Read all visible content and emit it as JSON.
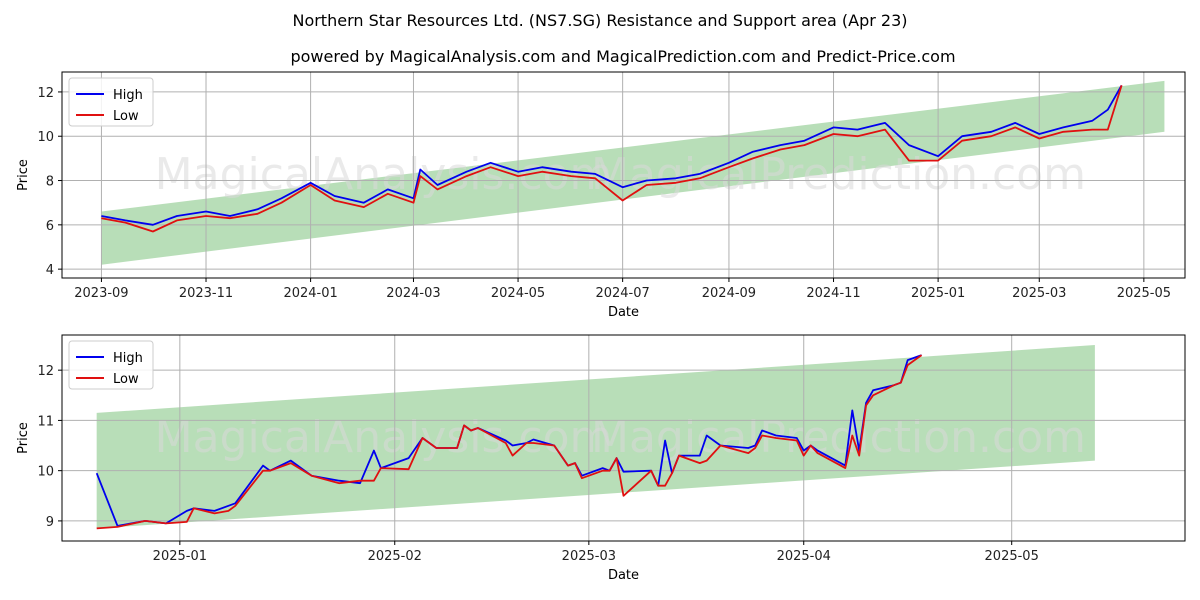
{
  "title": "Northern Star Resources Ltd. (NS7.SG) Resistance and Support area (Apr 23)",
  "subtitle": "powered by MagicalAnalysis.com and MagicalPrediction.com and Predict-Price.com",
  "watermark": "MagicalAnalysis.com",
  "watermark2": "MagicalPrediction.com",
  "colors": {
    "high": "#0000ee",
    "low": "#e01010",
    "band": "#8cc98c",
    "grid": "#b0b0b0"
  },
  "chart_data": [
    {
      "type": "line",
      "xlabel": "Date",
      "ylabel": "Price",
      "xlim": [
        "2023-08-09",
        "2025-05-25"
      ],
      "ylim": [
        3.6,
        12.9
      ],
      "grid": true,
      "legend": "top-left",
      "x_ticks": [
        "2023-09-01",
        "2023-11-01",
        "2024-01-01",
        "2024-03-01",
        "2024-05-01",
        "2024-07-01",
        "2024-09-01",
        "2024-11-01",
        "2025-01-01",
        "2025-03-01",
        "2025-05-01"
      ],
      "x_tick_labels": [
        "2023-09",
        "2023-11",
        "2024-01",
        "2024-03",
        "2024-05",
        "2024-07",
        "2024-09",
        "2024-11",
        "2025-01",
        "2025-03",
        "2025-05"
      ],
      "y_ticks": [
        4,
        6,
        8,
        10,
        12
      ],
      "y_tick_labels": [
        "4",
        "6",
        "8",
        "10",
        "12"
      ],
      "band": {
        "x": [
          "2023-09-01",
          "2025-05-13"
        ],
        "upper": [
          6.6,
          12.5
        ],
        "lower": [
          4.2,
          10.2
        ]
      },
      "series": [
        {
          "name": "High",
          "x": [
            "2023-09-01",
            "2023-09-15",
            "2023-10-01",
            "2023-10-15",
            "2023-11-01",
            "2023-11-15",
            "2023-12-01",
            "2023-12-15",
            "2024-01-01",
            "2024-01-15",
            "2024-02-01",
            "2024-02-15",
            "2024-03-01",
            "2024-03-05",
            "2024-03-15",
            "2024-04-01",
            "2024-04-15",
            "2024-05-01",
            "2024-05-15",
            "2024-06-01",
            "2024-06-15",
            "2024-07-01",
            "2024-07-15",
            "2024-08-01",
            "2024-08-15",
            "2024-09-01",
            "2024-09-15",
            "2024-10-01",
            "2024-10-15",
            "2024-11-01",
            "2024-11-15",
            "2024-12-01",
            "2024-12-15",
            "2025-01-01",
            "2025-01-15",
            "2025-02-01",
            "2025-02-15",
            "2025-03-01",
            "2025-03-15",
            "2025-04-01",
            "2025-04-10",
            "2025-04-18"
          ],
          "values": [
            6.4,
            6.2,
            6.0,
            6.4,
            6.6,
            6.4,
            6.7,
            7.2,
            7.9,
            7.3,
            7.0,
            7.6,
            7.2,
            8.5,
            7.8,
            8.4,
            8.8,
            8.4,
            8.6,
            8.4,
            8.3,
            7.7,
            8.0,
            8.1,
            8.3,
            8.8,
            9.3,
            9.6,
            9.8,
            10.4,
            10.3,
            10.6,
            9.6,
            9.1,
            10.0,
            10.2,
            10.6,
            10.1,
            10.4,
            10.7,
            11.2,
            12.3
          ]
        },
        {
          "name": "Low",
          "x": [
            "2023-09-01",
            "2023-09-15",
            "2023-10-01",
            "2023-10-15",
            "2023-11-01",
            "2023-11-15",
            "2023-12-01",
            "2023-12-15",
            "2024-01-01",
            "2024-01-15",
            "2024-02-01",
            "2024-02-15",
            "2024-03-01",
            "2024-03-05",
            "2024-03-15",
            "2024-04-01",
            "2024-04-15",
            "2024-05-01",
            "2024-05-15",
            "2024-06-01",
            "2024-06-15",
            "2024-07-01",
            "2024-07-15",
            "2024-08-01",
            "2024-08-15",
            "2024-09-01",
            "2024-09-15",
            "2024-10-01",
            "2024-10-15",
            "2024-11-01",
            "2024-11-15",
            "2024-12-01",
            "2024-12-15",
            "2025-01-01",
            "2025-01-15",
            "2025-02-01",
            "2025-02-15",
            "2025-03-01",
            "2025-03-15",
            "2025-04-01",
            "2025-04-10",
            "2025-04-18"
          ],
          "values": [
            6.3,
            6.1,
            5.7,
            6.2,
            6.4,
            6.3,
            6.5,
            7.0,
            7.8,
            7.1,
            6.8,
            7.4,
            7.0,
            8.2,
            7.6,
            8.2,
            8.6,
            8.2,
            8.4,
            8.2,
            8.1,
            7.1,
            7.8,
            7.9,
            8.1,
            8.6,
            9.0,
            9.4,
            9.6,
            10.1,
            10.0,
            10.3,
            8.9,
            8.9,
            9.8,
            10.0,
            10.4,
            9.9,
            10.2,
            10.3,
            10.3,
            12.3
          ]
        }
      ]
    },
    {
      "type": "line",
      "xlabel": "Date",
      "ylabel": "Price",
      "xlim": [
        "2024-12-15",
        "2025-05-26"
      ],
      "ylim": [
        8.6,
        12.7
      ],
      "grid": true,
      "legend": "top-left",
      "x_ticks": [
        "2025-01-01",
        "2025-02-01",
        "2025-03-01",
        "2025-04-01",
        "2025-05-01"
      ],
      "x_tick_labels": [
        "2025-01",
        "2025-02",
        "2025-03",
        "2025-04",
        "2025-05"
      ],
      "y_ticks": [
        9,
        10,
        11,
        12
      ],
      "y_tick_labels": [
        "9",
        "10",
        "11",
        "12"
      ],
      "band": {
        "x": [
          "2024-12-20",
          "2025-05-13"
        ],
        "upper": [
          11.15,
          12.5
        ],
        "lower": [
          8.85,
          10.2
        ]
      },
      "series": [
        {
          "name": "High",
          "x": [
            "2024-12-20",
            "2024-12-23",
            "2024-12-27",
            "2024-12-30",
            "2025-01-02",
            "2025-01-03",
            "2025-01-06",
            "2025-01-08",
            "2025-01-09",
            "2025-01-13",
            "2025-01-14",
            "2025-01-17",
            "2025-01-20",
            "2025-01-24",
            "2025-01-27",
            "2025-01-29",
            "2025-01-30",
            "2025-02-03",
            "2025-02-05",
            "2025-02-07",
            "2025-02-10",
            "2025-02-11",
            "2025-02-12",
            "2025-02-13",
            "2025-02-17",
            "2025-02-18",
            "2025-02-20",
            "2025-02-21",
            "2025-02-24",
            "2025-02-26",
            "2025-02-27",
            "2025-02-28",
            "2025-03-03",
            "2025-03-04",
            "2025-03-05",
            "2025-03-06",
            "2025-03-10",
            "2025-03-11",
            "2025-03-12",
            "2025-03-13",
            "2025-03-14",
            "2025-03-17",
            "2025-03-18",
            "2025-03-20",
            "2025-03-24",
            "2025-03-25",
            "2025-03-26",
            "2025-03-28",
            "2025-03-31",
            "2025-04-01",
            "2025-04-02",
            "2025-04-03",
            "2025-04-07",
            "2025-04-08",
            "2025-04-09",
            "2025-04-10",
            "2025-04-11",
            "2025-04-14",
            "2025-04-15",
            "2025-04-16",
            "2025-04-17",
            "2025-04-18"
          ],
          "values": [
            9.95,
            8.9,
            9.0,
            8.95,
            9.2,
            9.25,
            9.2,
            9.3,
            9.35,
            10.1,
            10.0,
            10.2,
            9.9,
            9.8,
            9.75,
            10.4,
            10.05,
            10.25,
            10.65,
            10.45,
            10.45,
            10.9,
            10.8,
            10.85,
            10.6,
            10.5,
            10.55,
            10.62,
            10.5,
            10.1,
            10.15,
            9.9,
            10.05,
            10.0,
            10.25,
            9.98,
            10.0,
            9.7,
            10.6,
            9.95,
            10.3,
            10.3,
            10.7,
            10.5,
            10.45,
            10.5,
            10.8,
            10.7,
            10.65,
            10.4,
            10.5,
            10.4,
            10.1,
            11.2,
            10.4,
            11.35,
            11.6,
            11.7,
            11.75,
            12.2,
            12.25,
            12.3
          ]
        },
        {
          "name": "Low",
          "x": [
            "2024-12-20",
            "2024-12-23",
            "2024-12-27",
            "2024-12-30",
            "2025-01-02",
            "2025-01-03",
            "2025-01-06",
            "2025-01-08",
            "2025-01-09",
            "2025-01-13",
            "2025-01-14",
            "2025-01-17",
            "2025-01-20",
            "2025-01-24",
            "2025-01-27",
            "2025-01-29",
            "2025-01-30",
            "2025-02-03",
            "2025-02-05",
            "2025-02-07",
            "2025-02-10",
            "2025-02-11",
            "2025-02-12",
            "2025-02-13",
            "2025-02-17",
            "2025-02-18",
            "2025-02-20",
            "2025-02-21",
            "2025-02-24",
            "2025-02-26",
            "2025-02-27",
            "2025-02-28",
            "2025-03-03",
            "2025-03-04",
            "2025-03-05",
            "2025-03-06",
            "2025-03-10",
            "2025-03-11",
            "2025-03-12",
            "2025-03-13",
            "2025-03-14",
            "2025-03-17",
            "2025-03-18",
            "2025-03-20",
            "2025-03-24",
            "2025-03-25",
            "2025-03-26",
            "2025-03-28",
            "2025-03-31",
            "2025-04-01",
            "2025-04-02",
            "2025-04-03",
            "2025-04-07",
            "2025-04-08",
            "2025-04-09",
            "2025-04-10",
            "2025-04-11",
            "2025-04-14",
            "2025-04-15",
            "2025-04-16",
            "2025-04-17",
            "2025-04-18"
          ],
          "values": [
            8.85,
            8.88,
            9.0,
            8.95,
            8.98,
            9.25,
            9.15,
            9.2,
            9.3,
            10.0,
            10.0,
            10.15,
            9.9,
            9.75,
            9.8,
            9.8,
            10.05,
            10.03,
            10.65,
            10.45,
            10.45,
            10.9,
            10.8,
            10.85,
            10.55,
            10.3,
            10.55,
            10.55,
            10.5,
            10.1,
            10.15,
            9.85,
            10.0,
            10.0,
            10.25,
            9.5,
            10.0,
            9.7,
            9.7,
            9.95,
            10.3,
            10.15,
            10.2,
            10.5,
            10.35,
            10.45,
            10.7,
            10.65,
            10.6,
            10.3,
            10.5,
            10.35,
            10.05,
            10.7,
            10.3,
            11.3,
            11.5,
            11.7,
            11.75,
            12.1,
            12.2,
            12.3
          ]
        }
      ]
    }
  ]
}
